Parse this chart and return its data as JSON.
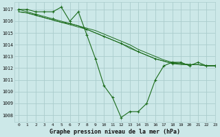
{
  "title": "Graphe pression niveau de la mer (hPa)",
  "bg_color": "#cce8e8",
  "grid_color": "#aacccc",
  "line_color": "#1a6b1a",
  "marker_color": "#1a6b1a",
  "xlim": [
    -0.5,
    23
  ],
  "ylim": [
    1007.4,
    1017.6
  ],
  "yticks": [
    1008,
    1009,
    1010,
    1011,
    1012,
    1013,
    1014,
    1015,
    1016,
    1017
  ],
  "xticks": [
    0,
    1,
    2,
    3,
    4,
    5,
    6,
    7,
    8,
    9,
    10,
    11,
    12,
    13,
    14,
    15,
    16,
    17,
    18,
    19,
    20,
    21,
    22,
    23
  ],
  "y_main": [
    1017.0,
    1017.0,
    1016.8,
    1016.8,
    1016.8,
    1017.2,
    1016.0,
    1016.8,
    1014.8,
    1012.8,
    1010.5,
    1009.5,
    1007.8,
    1008.3,
    1008.3,
    1009.0,
    1011.0,
    1012.2,
    1012.5,
    1012.5,
    1012.2,
    1012.5,
    1012.2,
    1012.2
  ],
  "y_diag1": [
    1016.8,
    1016.7,
    1016.5,
    1016.3,
    1016.1,
    1015.9,
    1015.8,
    1015.6,
    1015.4,
    1015.2,
    1014.9,
    1014.6,
    1014.3,
    1014.0,
    1013.6,
    1013.3,
    1013.0,
    1012.7,
    1012.5,
    1012.4,
    1012.3,
    1012.3,
    1012.2,
    1012.2
  ],
  "y_diag2": [
    1016.8,
    1016.7,
    1016.5,
    1016.3,
    1016.1,
    1015.9,
    1015.7,
    1015.5,
    1015.3,
    1015.0,
    1014.7,
    1014.4,
    1014.1,
    1013.8,
    1013.4,
    1013.1,
    1012.8,
    1012.6,
    1012.4,
    1012.3,
    1012.3,
    1012.3,
    1012.2,
    1012.2
  ],
  "y_diag3": [
    1017.0,
    1016.8,
    1016.6,
    1016.4,
    1016.2,
    1016.0,
    1015.8,
    1015.6,
    1015.3,
    1015.0,
    1014.7,
    1014.4,
    1014.1,
    1013.7,
    1013.4,
    1013.1,
    1012.8,
    1012.6,
    1012.4,
    1012.4,
    1012.3,
    1012.3,
    1012.2,
    1012.2
  ]
}
